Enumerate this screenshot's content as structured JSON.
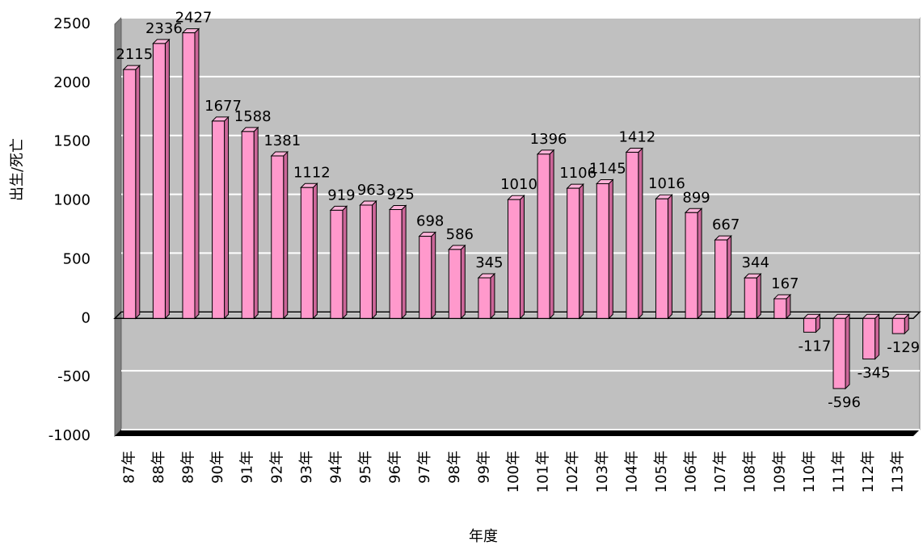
{
  "chart_data": {
    "type": "bar",
    "categories": [
      "87年",
      "88年",
      "89年",
      "90年",
      "91年",
      "92年",
      "93年",
      "94年",
      "95年",
      "96年",
      "97年",
      "98年",
      "99年",
      "100年",
      "101年",
      "102年",
      "103年",
      "104年",
      "105年",
      "106年",
      "107年",
      "108年",
      "109年",
      "110年",
      "111年",
      "112年",
      "113年"
    ],
    "values": [
      2115,
      2336,
      2427,
      1677,
      1588,
      1381,
      1112,
      919,
      963,
      925,
      698,
      586,
      345,
      1010,
      1396,
      1106,
      1145,
      1412,
      1016,
      899,
      667,
      344,
      167,
      -117,
      -596,
      -345,
      -129
    ],
    "color": "#ff99cc",
    "ylim": [
      -1000,
      2500
    ],
    "yticks": [
      -1000,
      -500,
      0,
      500,
      1000,
      1500,
      2000,
      2500
    ],
    "xlabel": "年度",
    "ylabel": "出生/死亡",
    "grid": true
  }
}
